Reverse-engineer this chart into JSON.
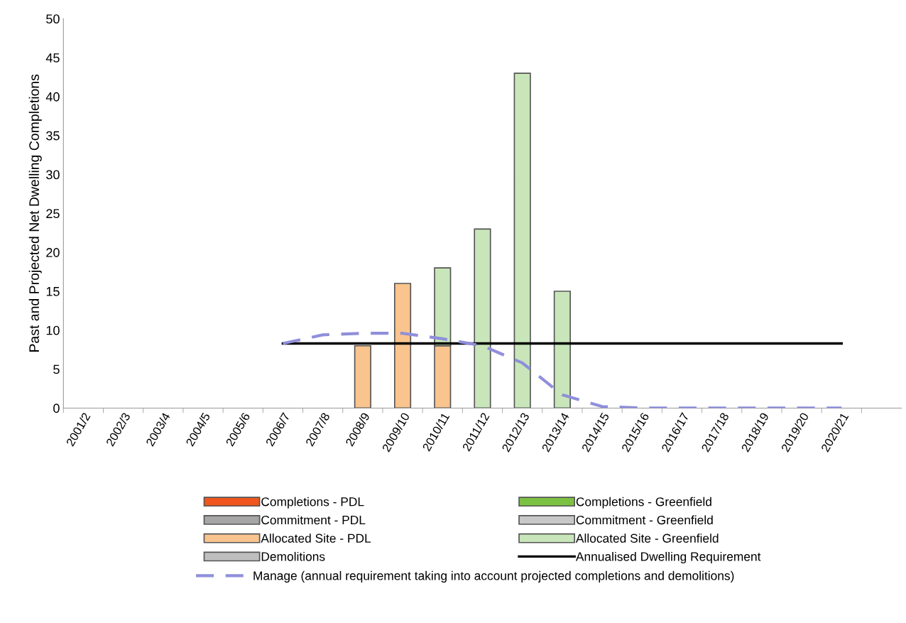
{
  "chart_data": {
    "type": "bar",
    "stacked": true,
    "ylabel": "Past and Projected Net Dwelling Completions",
    "categories": [
      "2001/2",
      "2002/3",
      "2003/4",
      "2004/5",
      "2005/6",
      "2006/7",
      "2007/8",
      "2008/9",
      "2009/10",
      "2010/11",
      "2011/12",
      "2012/13",
      "2013/14",
      "2014/15",
      "2015/16",
      "2016/17",
      "2017/18",
      "2018/19",
      "2019/20",
      "2020/21"
    ],
    "series": [
      {
        "name": "Completions - PDL",
        "color": "#f0561e",
        "values": [
          null,
          null,
          null,
          null,
          null,
          null,
          null,
          null,
          null,
          null,
          null,
          null,
          null,
          null,
          null,
          null,
          null,
          null,
          null,
          null
        ]
      },
      {
        "name": "Completions - Greenfield",
        "color": "#7cc242",
        "values": [
          null,
          null,
          null,
          null,
          null,
          null,
          null,
          null,
          null,
          null,
          null,
          null,
          null,
          null,
          null,
          null,
          null,
          null,
          null,
          null
        ]
      },
      {
        "name": "Commitment - PDL",
        "color": "#a6a6a6",
        "values": [
          null,
          null,
          null,
          null,
          null,
          null,
          null,
          null,
          null,
          null,
          null,
          null,
          null,
          null,
          null,
          null,
          null,
          null,
          null,
          null
        ]
      },
      {
        "name": "Commitment - Greenfield",
        "color": "#c8c8c8",
        "values": [
          null,
          null,
          null,
          null,
          null,
          null,
          null,
          null,
          null,
          null,
          null,
          null,
          null,
          null,
          null,
          null,
          null,
          null,
          null,
          null
        ]
      },
      {
        "name": "Allocated Site - PDL",
        "color": "#f9c48e",
        "values": [
          null,
          null,
          null,
          null,
          null,
          null,
          null,
          8,
          16,
          8,
          null,
          null,
          null,
          null,
          null,
          null,
          null,
          null,
          null,
          null
        ]
      },
      {
        "name": "Allocated Site - Greenfield",
        "color": "#c8e6b9",
        "values": [
          null,
          null,
          null,
          null,
          null,
          null,
          null,
          null,
          null,
          10,
          23,
          43,
          15,
          null,
          null,
          null,
          null,
          null,
          null,
          null
        ]
      },
      {
        "name": "Demolitions",
        "color": "#bfbfbf",
        "values": [
          null,
          null,
          null,
          null,
          null,
          null,
          null,
          null,
          null,
          null,
          null,
          null,
          null,
          null,
          null,
          null,
          null,
          null,
          null,
          null
        ]
      },
      {
        "name": "Annualised Dwelling Requirement",
        "type": "line",
        "color": "#000000",
        "line_style": "solid",
        "values": [
          null,
          null,
          null,
          null,
          null,
          8.3,
          8.3,
          8.3,
          8.3,
          8.3,
          8.3,
          8.3,
          8.3,
          8.3,
          8.3,
          8.3,
          8.3,
          8.3,
          8.3,
          8.3
        ]
      },
      {
        "name": "Manage (annual requirement taking into account projected completions and demolitions)",
        "type": "line",
        "color": "#8f8fdb",
        "line_style": "dashed",
        "values": [
          null,
          null,
          null,
          null,
          null,
          8.3,
          9.4,
          9.6,
          9.6,
          8.9,
          8.0,
          5.8,
          1.7,
          0.2,
          0,
          0,
          0,
          0,
          0,
          0
        ]
      }
    ],
    "ylim": [
      0,
      50
    ],
    "yticks": [
      0,
      5,
      10,
      15,
      20,
      25,
      30,
      35,
      40,
      45,
      50
    ],
    "grid": false,
    "legend": "bottom"
  }
}
